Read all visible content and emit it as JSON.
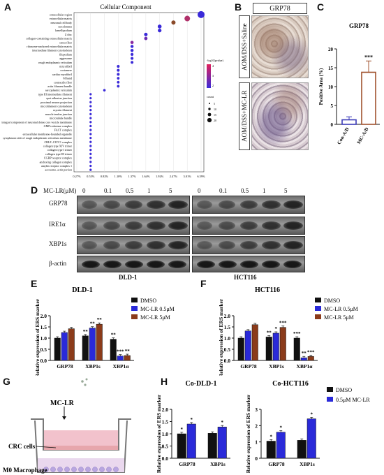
{
  "panels": {
    "A": {
      "label": "A",
      "title": "Cellular Component",
      "terms": [
        "extracellular region",
        "extracellular matrix",
        "neuronal cell body",
        "sarcolemma",
        "lamellipodium",
        "Z disc",
        "collagen-containing extracellular matrix",
        "stress fiber",
        "ribosome-anchored extracellular matrix",
        "intermediate filament cytoskeleton",
        "filopodium",
        "aggresome",
        "rough endoplasmic reticulum",
        "microfibril",
        "costamere",
        "cardiac myofibril",
        "M band",
        "contractile fiber",
        "actin filament bundle",
        "sarcoplasmic reticulum",
        "type III intermediate filament",
        "spot adhesion junction",
        "proximal neuron projection",
        "microfilament cytoskeleton",
        "myosin filament",
        "muscle tendon junction",
        "microtubule bundle",
        "integral component of neuronal dense core vesicle membrane",
        "GMP reductase complex",
        "FACT complex",
        "extracellular membrane-bounded organelle",
        "cytoplasmic side of rough endoplasmic reticulum membrane",
        "CBLF–CLTC1 complex",
        "collagen type XIV trimer",
        "collagen type I trimer",
        "collagen type III trimer",
        "CGRP receptor complex",
        "anchoring collagen complex",
        "amylin receptor complex 1",
        "acrosome, actin portion"
      ],
      "x_ticks": [
        "0.27%",
        "0.55%",
        "0.82%",
        "1.10%",
        "1.37%",
        "1.64%",
        "1.92%",
        "2.47%",
        "3.01%",
        "6.59%"
      ],
      "legend_title": "-log10(pvalue)",
      "legend_ticks": [
        "2",
        "3",
        "4"
      ],
      "size_title": "count",
      "size_ticks": [
        "5",
        "10",
        "15",
        "20"
      ]
    },
    "B": {
      "label": "B",
      "stain_title": "GRP78",
      "row1": "AOM/DSS+Saline",
      "row2": "AOM/DSS+MC-LR"
    },
    "C": {
      "label": "C",
      "chart_data": {
        "type": "bar",
        "title": "GRP78",
        "ylabel": "Positive Area (%)",
        "categories": [
          "Con-A/D",
          "MC-A/D"
        ],
        "values": [
          1.2,
          13.8
        ],
        "errors": [
          0.8,
          3.0
        ],
        "ylim": [
          0,
          20
        ],
        "yticks": [
          "0",
          "5",
          "10",
          "15",
          "20"
        ],
        "annotations": [
          "",
          "***"
        ]
      }
    },
    "D": {
      "label": "D",
      "dose_label": "MC-LR(μM)",
      "doses": [
        "0",
        "0.1",
        "0.5",
        "1",
        "5"
      ],
      "rows": [
        "GRP78",
        "IRE1α",
        "XBP1s",
        "β-actin"
      ],
      "cell_lines": [
        "DLD-1",
        "HCT116"
      ]
    },
    "E": {
      "label": "E",
      "chart_data": {
        "type": "bar",
        "title": "DLD-1",
        "ylabel": "Relative expression of ERS marker",
        "categories": [
          "GRP78",
          "XBP1s",
          "XBP1α"
        ],
        "series": [
          {
            "name": "DMSO",
            "values": [
              1.0,
              1.1,
              0.95
            ]
          },
          {
            "name": "MC-LR 0.5μM",
            "values": [
              1.25,
              1.45,
              0.2
            ]
          },
          {
            "name": "MC-LR 5μM",
            "values": [
              1.42,
              1.62,
              0.22
            ]
          }
        ],
        "ylim": [
          0,
          2.0
        ],
        "yticks": [
          "0.0",
          "0.5",
          "1.0",
          "1.5",
          "2.0"
        ],
        "annotations": [
          [
            "",
            "**",
            "**"
          ],
          [
            "",
            "**",
            "***"
          ],
          [
            "",
            "**",
            "**"
          ]
        ]
      }
    },
    "F": {
      "label": "F",
      "chart_data": {
        "type": "bar",
        "title": "HCT116",
        "ylabel": "Relative expression of ERS marker",
        "categories": [
          "GRP78",
          "XBP1s",
          "XBP1α"
        ],
        "series": [
          {
            "name": "DMSO",
            "values": [
              1.0,
              1.05,
              1.0
            ]
          },
          {
            "name": "MC-LR 0.5μM",
            "values": [
              1.32,
              1.22,
              0.12
            ]
          },
          {
            "name": "MC-LR 5μM",
            "values": [
              1.6,
              1.48,
              0.18
            ]
          }
        ],
        "ylim": [
          0,
          2.0
        ],
        "yticks": [
          "0.0",
          "0.5",
          "1.0",
          "1.5",
          "2.0"
        ],
        "annotations": [
          [
            "",
            "**",
            "***"
          ],
          [
            "",
            "*",
            "**"
          ],
          [
            "",
            "***",
            "***"
          ]
        ]
      }
    },
    "G": {
      "label": "G",
      "top_label": "MC-LR",
      "label_crc": "CRC cells",
      "label_mac": "M0 Macrophage"
    },
    "H": {
      "label": "H",
      "legend": [
        "DMSO",
        "0.5μM MC-LR"
      ],
      "ylabel": "Relative expression of ERS marker",
      "chart_data": [
        {
          "type": "bar",
          "title": "Co-DLD-1",
          "categories": [
            "GRP78",
            "XBP1s"
          ],
          "series": [
            {
              "name": "DMSO",
              "values": [
                1.0,
                1.02
              ]
            },
            {
              "name": "0.5μM MC-LR",
              "values": [
                1.4,
                1.28
              ]
            }
          ],
          "ylim": [
            0,
            2.0
          ],
          "yticks": [
            "0.0",
            "0.5",
            "1.0",
            "1.5",
            "2.0"
          ],
          "annotations": [
            "*",
            "**"
          ]
        },
        {
          "type": "bar",
          "title": "Co-HCT116",
          "categories": [
            "GRP78",
            "XBP1s"
          ],
          "series": [
            {
              "name": "DMSO",
              "values": [
                1.05,
                1.1
              ]
            },
            {
              "name": "0.5μM MC-LR",
              "values": [
                1.6,
                2.42
              ]
            }
          ],
          "ylim": [
            0,
            3
          ],
          "yticks": [
            "0",
            "1",
            "2",
            "3"
          ],
          "annotations": [
            "*",
            "***"
          ]
        }
      ]
    }
  },
  "colors": {
    "dmso": "#111111",
    "low": "#2a2ad9",
    "high": "#8b3b1a",
    "c_bar_low": "#3a3ab8",
    "c_bar_high": "#a0522d",
    "dot_hi": "#3a2ad9",
    "dot_lo": "#e0205a"
  }
}
